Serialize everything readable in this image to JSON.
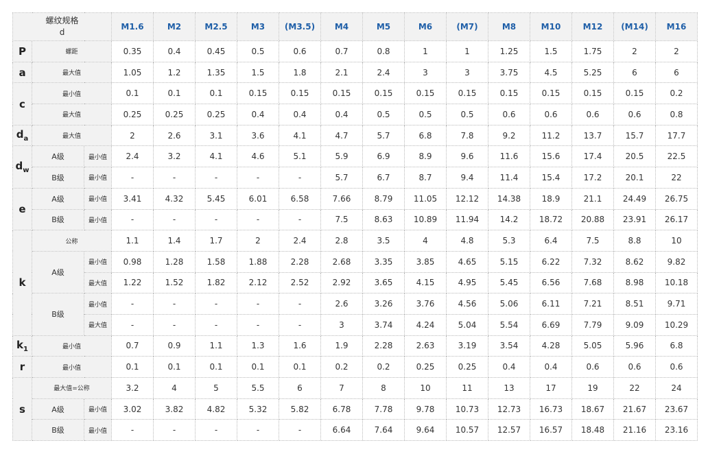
{
  "header": {
    "corner_line1": "螺纹规格",
    "corner_line2": "d",
    "sizes": [
      "M1.6",
      "M2",
      "M2.5",
      "M3",
      "(M3.5)",
      "M4",
      "M5",
      "M6",
      "(M7)",
      "M8",
      "M10",
      "M12",
      "(M14)",
      "M16"
    ]
  },
  "labels": {
    "pitch": "螺距",
    "max": "最大值",
    "min": "最小值",
    "nominal": "公称",
    "max_eq_nominal": "最大值=公称",
    "grade_a": "A级",
    "grade_b": "B级"
  },
  "symbols": {
    "p": "P",
    "a": "a",
    "c": "c",
    "da": {
      "base": "d",
      "sub": "a"
    },
    "dw": {
      "base": "d",
      "sub": "w"
    },
    "e": "e",
    "k": "k",
    "k1": {
      "base": "k",
      "sub": "1"
    },
    "r": "r",
    "s": "s"
  },
  "rows": {
    "p": [
      "0.35",
      "0.4",
      "0.45",
      "0.5",
      "0.6",
      "0.7",
      "0.8",
      "1",
      "1",
      "1.25",
      "1.5",
      "1.75",
      "2",
      "2"
    ],
    "a_max": [
      "1.05",
      "1.2",
      "1.35",
      "1.5",
      "1.8",
      "2.1",
      "2.4",
      "3",
      "3",
      "3.75",
      "4.5",
      "5.25",
      "6",
      "6"
    ],
    "c_min": [
      "0.1",
      "0.1",
      "0.1",
      "0.15",
      "0.15",
      "0.15",
      "0.15",
      "0.15",
      "0.15",
      "0.15",
      "0.15",
      "0.15",
      "0.15",
      "0.2"
    ],
    "c_max": [
      "0.25",
      "0.25",
      "0.25",
      "0.4",
      "0.4",
      "0.4",
      "0.5",
      "0.5",
      "0.5",
      "0.6",
      "0.6",
      "0.6",
      "0.6",
      "0.8"
    ],
    "da_max": [
      "2",
      "2.6",
      "3.1",
      "3.6",
      "4.1",
      "4.7",
      "5.7",
      "6.8",
      "7.8",
      "9.2",
      "11.2",
      "13.7",
      "15.7",
      "17.7"
    ],
    "dw_a_min": [
      "2.4",
      "3.2",
      "4.1",
      "4.6",
      "5.1",
      "5.9",
      "6.9",
      "8.9",
      "9.6",
      "11.6",
      "15.6",
      "17.4",
      "20.5",
      "22.5"
    ],
    "dw_b_min": [
      "-",
      "-",
      "-",
      "-",
      "-",
      "5.7",
      "6.7",
      "8.7",
      "9.4",
      "11.4",
      "15.4",
      "17.2",
      "20.1",
      "22"
    ],
    "e_a_min": [
      "3.41",
      "4.32",
      "5.45",
      "6.01",
      "6.58",
      "7.66",
      "8.79",
      "11.05",
      "12.12",
      "14.38",
      "18.9",
      "21.1",
      "24.49",
      "26.75"
    ],
    "e_b_min": [
      "-",
      "-",
      "-",
      "-",
      "-",
      "7.5",
      "8.63",
      "10.89",
      "11.94",
      "14.2",
      "18.72",
      "20.88",
      "23.91",
      "26.17"
    ],
    "k_nom": [
      "1.1",
      "1.4",
      "1.7",
      "2",
      "2.4",
      "2.8",
      "3.5",
      "4",
      "4.8",
      "5.3",
      "6.4",
      "7.5",
      "8.8",
      "10"
    ],
    "k_a_min": [
      "0.98",
      "1.28",
      "1.58",
      "1.88",
      "2.28",
      "2.68",
      "3.35",
      "3.85",
      "4.65",
      "5.15",
      "6.22",
      "7.32",
      "8.62",
      "9.82"
    ],
    "k_a_max": [
      "1.22",
      "1.52",
      "1.82",
      "2.12",
      "2.52",
      "2.92",
      "3.65",
      "4.15",
      "4.95",
      "5.45",
      "6.56",
      "7.68",
      "8.98",
      "10.18"
    ],
    "k_b_min": [
      "-",
      "-",
      "-",
      "-",
      "-",
      "2.6",
      "3.26",
      "3.76",
      "4.56",
      "5.06",
      "6.11",
      "7.21",
      "8.51",
      "9.71"
    ],
    "k_b_max": [
      "-",
      "-",
      "-",
      "-",
      "-",
      "3",
      "3.74",
      "4.24",
      "5.04",
      "5.54",
      "6.69",
      "7.79",
      "9.09",
      "10.29"
    ],
    "k1_min": [
      "0.7",
      "0.9",
      "1.1",
      "1.3",
      "1.6",
      "1.9",
      "2.28",
      "2.63",
      "3.19",
      "3.54",
      "4.28",
      "5.05",
      "5.96",
      "6.8"
    ],
    "r_min": [
      "0.1",
      "0.1",
      "0.1",
      "0.1",
      "0.1",
      "0.2",
      "0.2",
      "0.25",
      "0.25",
      "0.4",
      "0.4",
      "0.6",
      "0.6",
      "0.6"
    ],
    "s_nom": [
      "3.2",
      "4",
      "5",
      "5.5",
      "6",
      "7",
      "8",
      "10",
      "11",
      "13",
      "17",
      "19",
      "22",
      "24"
    ],
    "s_a_min": [
      "3.02",
      "3.82",
      "4.82",
      "5.32",
      "5.82",
      "6.78",
      "7.78",
      "9.78",
      "10.73",
      "12.73",
      "16.73",
      "18.67",
      "21.67",
      "23.67"
    ],
    "s_b_min": [
      "-",
      "-",
      "-",
      "-",
      "-",
      "6.64",
      "7.64",
      "9.64",
      "10.57",
      "12.57",
      "16.57",
      "18.48",
      "21.16",
      "23.16"
    ]
  }
}
